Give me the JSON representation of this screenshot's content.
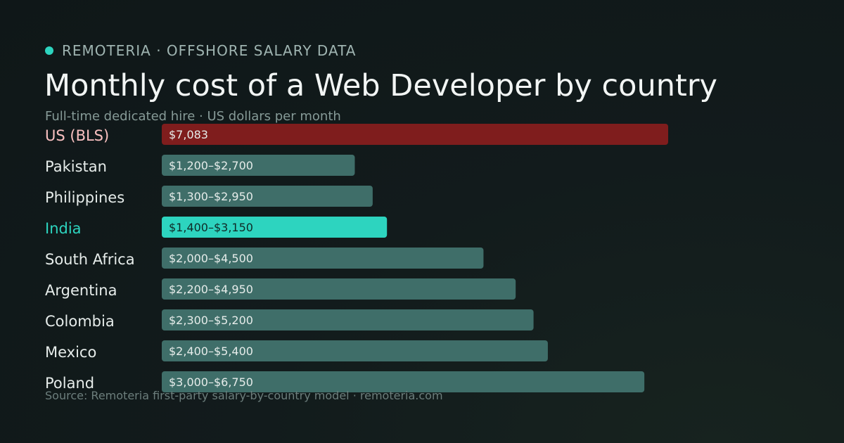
{
  "brand": {
    "text": "REMOTERIA · OFFSHORE SALARY DATA",
    "dot_color": "#2dd4bf"
  },
  "source": "Source: Remoteria first-party salary-by-country model · remoteria.com",
  "chart_data": {
    "type": "bar",
    "orientation": "horizontal",
    "title": "Monthly cost of a Web Developer by country",
    "subtitle": "Full-time dedicated hire · US dollars per month",
    "categories": [
      "US (BLS)",
      "Pakistan",
      "Philippines",
      "India",
      "South Africa",
      "Argentina",
      "Colombia",
      "Mexico",
      "Poland"
    ],
    "values_low": [
      7083,
      1200,
      1300,
      1400,
      2000,
      2200,
      2300,
      2400,
      3000
    ],
    "values_high": [
      7083,
      2700,
      2950,
      3150,
      4500,
      4950,
      5200,
      5400,
      6750
    ],
    "labels": [
      "$7,083",
      "$1,200–$2,700",
      "$1,300–$2,950",
      "$1,400–$3,150",
      "$2,000–$4,500",
      "$2,200–$4,950",
      "$2,300–$5,200",
      "$2,400–$5,400",
      "$3,000–$6,750"
    ],
    "xlim": [
      0,
      7083
    ],
    "grid": false,
    "legend": "none",
    "colors": {
      "baseline": "#7f1d1d",
      "highlight": "#2dd4bf",
      "default": "#3f6e69",
      "baseline_label": "#f9c0c0",
      "highlight_label": "#2dd4bf",
      "default_label": "#e6ecea",
      "bar_text": "#e6ecea",
      "highlight_bar_text": "#0f2a27"
    },
    "baseline_category": "US (BLS)",
    "highlight_category": "India"
  }
}
